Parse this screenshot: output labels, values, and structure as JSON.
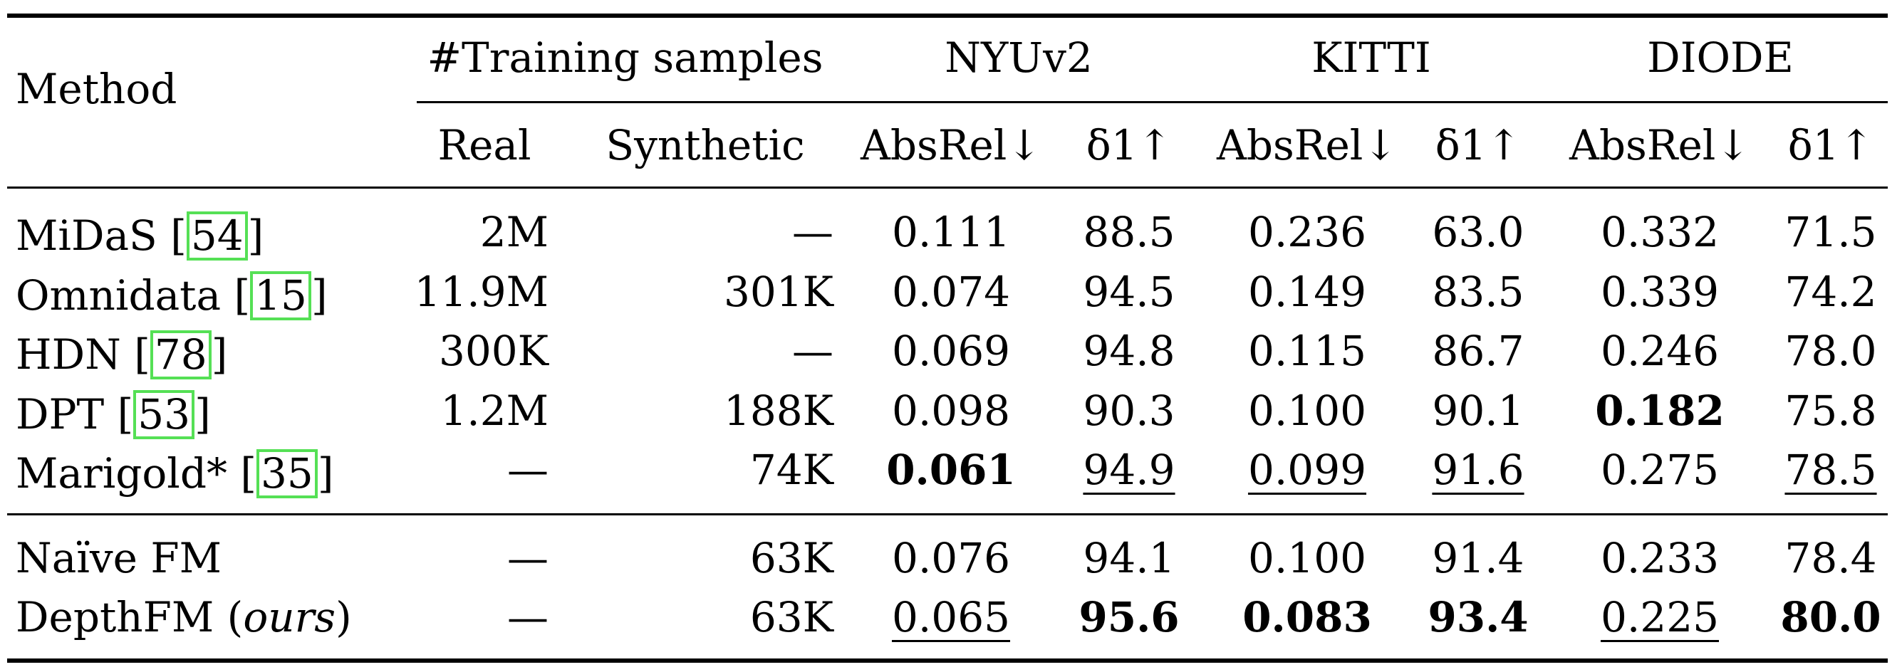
{
  "header": {
    "method": "Method",
    "training_samples": "#Training samples",
    "datasets": [
      "NYUv2",
      "KITTI",
      "DIODE"
    ],
    "sub": {
      "real": "Real",
      "synthetic": "Synthetic",
      "absrel": "AbsRel↓",
      "delta1": "δ1↑"
    }
  },
  "rows": [
    {
      "name": "MiDaS [",
      "cite": "54",
      "close": "]",
      "real": "2M",
      "synthetic": "—",
      "nyu_absrel": "0.111",
      "nyu_d1": "88.5",
      "kitti_absrel": "0.236",
      "kitti_d1": "63.0",
      "diode_absrel": "0.332",
      "diode_d1": "71.5"
    },
    {
      "name": "Omnidata [",
      "cite": "15",
      "close": "]",
      "real": "11.9M",
      "synthetic": "301K",
      "nyu_absrel": "0.074",
      "nyu_d1": "94.5",
      "kitti_absrel": "0.149",
      "kitti_d1": "83.5",
      "diode_absrel": "0.339",
      "diode_d1": "74.2"
    },
    {
      "name": "HDN [",
      "cite": "78",
      "close": "]",
      "real": "300K",
      "synthetic": "—",
      "nyu_absrel": "0.069",
      "nyu_d1": "94.8",
      "kitti_absrel": "0.115",
      "kitti_d1": "86.7",
      "diode_absrel": "0.246",
      "diode_d1": "78.0"
    },
    {
      "name": "DPT [",
      "cite": "53",
      "close": "]",
      "real": "1.2M",
      "synthetic": "188K",
      "nyu_absrel": "0.098",
      "nyu_d1": "90.3",
      "kitti_absrel": "0.100",
      "kitti_d1": "90.1",
      "diode_absrel": "0.182",
      "diode_d1": "75.8"
    },
    {
      "name": "Marigold* [",
      "cite": "35",
      "close": "]",
      "real": "—",
      "synthetic": "74K",
      "nyu_absrel": "0.061",
      "nyu_d1": "94.9",
      "kitti_absrel": "0.099",
      "kitti_d1": "91.6",
      "diode_absrel": "0.275",
      "diode_d1": "78.5"
    },
    {
      "name": "Naïve FM",
      "real": "—",
      "synthetic": "63K",
      "nyu_absrel": "0.076",
      "nyu_d1": "94.1",
      "kitti_absrel": "0.100",
      "kitti_d1": "91.4",
      "diode_absrel": "0.233",
      "diode_d1": "78.4"
    },
    {
      "name": "DepthFM (",
      "name_italic": "ours",
      "close": ")",
      "real": "—",
      "synthetic": "63K",
      "nyu_absrel": "0.065",
      "nyu_d1": "95.6",
      "kitti_absrel": "0.083",
      "kitti_d1": "93.4",
      "diode_absrel": "0.225",
      "diode_d1": "80.0"
    }
  ]
}
